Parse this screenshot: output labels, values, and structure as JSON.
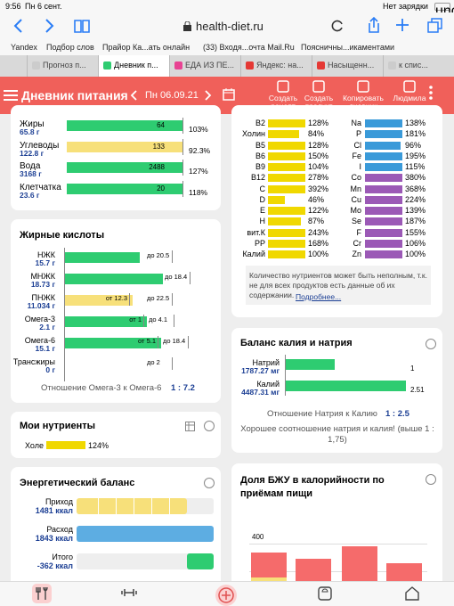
{
  "status": {
    "time": "9:56",
    "date": "Пн 6 сент.",
    "battery": "Нет зарядки"
  },
  "browser": {
    "url": "health-diet.ru"
  },
  "bookmarks": [
    "Yandex",
    "Подбор слов",
    "Прайор Ка...ать онлайн",
    "(33) Входя...очта Mail.Ru",
    "Поясничны...икаментами"
  ],
  "tabs": [
    "Прогноз п...",
    "Дневник п...",
    "ЕДА ИЗ ПЕ...",
    "Яндекс: на...",
    "Насыщенн...",
    "к спис..."
  ],
  "appbar": {
    "title": "Дневник питания",
    "date": "Пн 06.09.21",
    "actions": [
      "Создать рецепт",
      "Создать продукт",
      "Копировать дневник",
      "Людмила"
    ]
  },
  "macros": [
    {
      "name": "Жиры",
      "amount": "65.8 г",
      "bar": "64",
      "pct": "103%"
    },
    {
      "name": "Углеводы",
      "amount": "122.8 г",
      "bar": "133",
      "pct": "92.3%"
    },
    {
      "name": "Вода",
      "amount": "3168 г",
      "bar": "2488",
      "pct": "127%"
    },
    {
      "name": "Клетчатка",
      "amount": "23.6 г",
      "bar": "20",
      "pct": "118%"
    }
  ],
  "vitamins": [
    [
      "B2",
      "128%"
    ],
    [
      "Холин",
      "84%"
    ],
    [
      "B5",
      "128%"
    ],
    [
      "B6",
      "150%"
    ],
    [
      "B9",
      "104%"
    ],
    [
      "B12",
      "278%"
    ],
    [
      "C",
      "392%"
    ],
    [
      "D",
      "46%"
    ],
    [
      "E",
      "122%"
    ],
    [
      "H",
      "87%"
    ],
    [
      "вит.К",
      "243%"
    ],
    [
      "PP",
      "168%"
    ],
    [
      "Калий",
      "100%"
    ]
  ],
  "minerals": [
    [
      "Na",
      "138%"
    ],
    [
      "P",
      "181%"
    ],
    [
      "Cl",
      "96%"
    ],
    [
      "Fe",
      "195%"
    ],
    [
      "I",
      "115%"
    ],
    [
      "Co",
      "380%"
    ],
    [
      "Mn",
      "368%"
    ],
    [
      "Cu",
      "224%"
    ],
    [
      "Mo",
      "139%"
    ],
    [
      "Se",
      "187%"
    ],
    [
      "F",
      "155%"
    ],
    [
      "Cr",
      "106%"
    ],
    [
      "Zn",
      "100%"
    ]
  ],
  "nutrient_note": "Количество нутриентов может быть неполным, т.к. не для всех продуктов есть данные об их содержании.",
  "nutrient_link": "Подробнее...",
  "fatty": {
    "title": "Жирные кислоты",
    "rows": [
      {
        "name": "НЖК",
        "amount": "15.7 г",
        "to": "до 20.5"
      },
      {
        "name": "МНЖК",
        "amount": "18.73 г",
        "to": "до 18.4"
      },
      {
        "name": "ПНЖК",
        "amount": "11.034 г",
        "from": "от 12.3",
        "to": "до 22.5"
      },
      {
        "name": "Омега-3",
        "amount": "2.1 г",
        "from": "от 1",
        "to": "до 4.1"
      },
      {
        "name": "Омега-6",
        "amount": "15.1 г",
        "from": "от 5.1",
        "to": "до 18.4"
      },
      {
        "name": "Трансжиры",
        "amount": "0 г",
        "to": "до 2"
      }
    ],
    "ratio_label": "Отношение Омега-3 к Омега-6",
    "ratio": "1 : 7.2"
  },
  "kna": {
    "title": "Баланс калия и натрия",
    "rows": [
      {
        "name": "Натрий",
        "amount": "1787.27 мг",
        "value": "1"
      },
      {
        "name": "Калий",
        "amount": "4487.31 мг",
        "value": "2.51"
      }
    ],
    "ratio_label": "Отношение Натрия к Калию",
    "ratio": "1 : 2.5",
    "note": "Хорошее соотношение натрия и калия! (выше 1 : 1,75)"
  },
  "my_nutrients": {
    "title": "Мои нутриенты",
    "rows": [
      {
        "name": "Холе",
        "pct": "124%"
      }
    ]
  },
  "energy": {
    "title": "Энергетический баланс",
    "rows": [
      {
        "name": "Приход",
        "amount": "1481 ккал"
      },
      {
        "name": "Расход",
        "amount": "1843 ккал"
      },
      {
        "name": "Итого",
        "amount": "-362 ккал"
      }
    ]
  },
  "bju": {
    "title": "Доля БЖУ в калорийности по приёмам пищи",
    "yticks": [
      "400",
      "300"
    ]
  }
}
